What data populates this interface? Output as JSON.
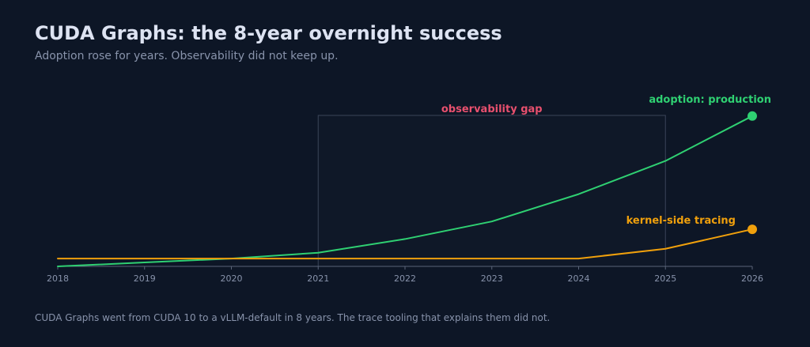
{
  "header": {
    "title": "CUDA Graphs: the 8-year overnight success",
    "subtitle": "Adoption rose for years. Observability did not keep up."
  },
  "footnote": "CUDA Graphs went from CUDA 10 to a vLLM-default in 8 years. The trace tooling that explains them did not.",
  "colors": {
    "background": "#0d1626",
    "axis": "#5a6478",
    "gap_border": "#3a4458",
    "gap_label": "#e8506e",
    "adoption": "#2fd072",
    "tracing": "#f0a00c"
  },
  "chart_data": {
    "type": "line",
    "title": "CUDA Graphs: the 8-year overnight success",
    "subtitle": "Adoption rose for years. Observability did not keep up.",
    "xlabel": "",
    "ylabel": "",
    "x": [
      2018,
      2019,
      2020,
      2021,
      2022,
      2023,
      2024,
      2025,
      2026
    ],
    "xticks": [
      "2018",
      "2019",
      "2020",
      "2021",
      "2022",
      "2023",
      "2024",
      "2025",
      "2026"
    ],
    "xlim": [
      2018,
      2026
    ],
    "ylim": [
      0,
      1
    ],
    "y_axis_shown": false,
    "grid": false,
    "legend": "none",
    "series": [
      {
        "name": "adoption: production",
        "color": "#2fd072",
        "values": [
          0.0,
          0.02,
          0.04,
          0.07,
          0.14,
          0.23,
          0.37,
          0.54,
          0.77
        ],
        "end_marker": true
      },
      {
        "name": "kernel-side tracing",
        "color": "#f0a00c",
        "values": [
          0.04,
          0.04,
          0.04,
          0.04,
          0.04,
          0.04,
          0.04,
          0.09,
          0.19
        ],
        "end_marker": true
      }
    ],
    "annotations": [
      {
        "type": "region",
        "label": "observability gap",
        "x_start": 2021,
        "x_end": 2025,
        "y_top": 1.0,
        "color": "#e8506e"
      }
    ]
  }
}
